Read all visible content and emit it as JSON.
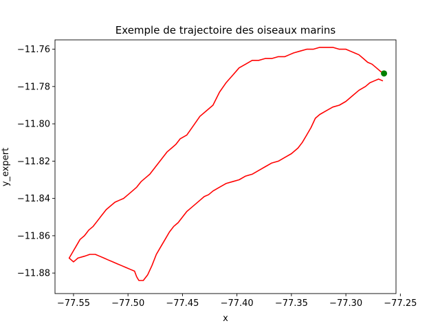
{
  "chart_data": {
    "type": "line",
    "title": "Exemple de trajectoire des oiseaux marins",
    "xlabel": "x",
    "ylabel": "y_expert",
    "xlim": [
      -77.567,
      -77.254
    ],
    "ylim": [
      -11.891,
      -11.755
    ],
    "grid": false,
    "xticks": [
      -77.55,
      -77.5,
      -77.45,
      -77.4,
      -77.35,
      -77.3,
      -77.25
    ],
    "xtick_labels": [
      "−77.55",
      "−77.50",
      "−77.45",
      "−77.40",
      "−77.35",
      "−77.30",
      "−77.25"
    ],
    "yticks": [
      -11.76,
      -11.78,
      -11.8,
      -11.82,
      -11.84,
      -11.86,
      -11.88
    ],
    "ytick_labels": [
      "−11.76",
      "−11.78",
      "−11.80",
      "−11.82",
      "−11.84",
      "−11.86",
      "−11.88"
    ],
    "line_color": "#ff0000",
    "marker_color": "#008000",
    "start_point": {
      "x": -77.265,
      "y": -11.773
    },
    "series": [
      {
        "x": [
          -77.265,
          -77.268,
          -77.272,
          -77.276,
          -77.28,
          -77.284,
          -77.288,
          -77.292,
          -77.296,
          -77.3,
          -77.306,
          -77.312,
          -77.318,
          -77.324,
          -77.33,
          -77.336,
          -77.342,
          -77.348,
          -77.352,
          -77.356,
          -77.362,
          -77.368,
          -77.374,
          -77.38,
          -77.386,
          -77.392,
          -77.398,
          -77.404,
          -77.41,
          -77.416,
          -77.422,
          -77.428,
          -77.434,
          -77.44,
          -77.446,
          -77.452,
          -77.456,
          -77.46,
          -77.464,
          -77.468,
          -77.472,
          -77.476,
          -77.48,
          -77.484,
          -77.488,
          -77.492,
          -77.496,
          -77.5,
          -77.504,
          -77.508,
          -77.512,
          -77.516,
          -77.52,
          -77.524,
          -77.528,
          -77.532,
          -77.536,
          -77.54,
          -77.544,
          -77.546,
          -77.548,
          -77.55,
          -77.552,
          -77.554,
          -77.552,
          -77.55,
          -77.548,
          -77.546,
          -77.54,
          -77.535,
          -77.53,
          -77.526,
          -77.522,
          -77.518,
          -77.514,
          -77.51,
          -77.506,
          -77.502,
          -77.498,
          -77.494,
          -77.492,
          -77.49,
          -77.486,
          -77.482,
          -77.478,
          -77.474,
          -77.47,
          -77.466,
          -77.462,
          -77.458,
          -77.454,
          -77.45,
          -77.446,
          -77.442,
          -77.438,
          -77.434,
          -77.43,
          -77.426,
          -77.422,
          -77.416,
          -77.41,
          -77.404,
          -77.398,
          -77.392,
          -77.386,
          -77.38,
          -77.374,
          -77.368,
          -77.362,
          -77.356,
          -77.35,
          -77.344,
          -77.34,
          -77.336,
          -77.332,
          -77.328,
          -77.324,
          -77.318,
          -77.312,
          -77.306,
          -77.3,
          -77.294,
          -77.288,
          -77.282,
          -77.278,
          -77.274,
          -77.27,
          -77.266
        ],
        "y": [
          -11.773,
          -11.772,
          -11.77,
          -11.768,
          -11.767,
          -11.765,
          -11.763,
          -11.762,
          -11.761,
          -11.76,
          -11.76,
          -11.759,
          -11.759,
          -11.759,
          -11.76,
          -11.76,
          -11.761,
          -11.762,
          -11.763,
          -11.764,
          -11.764,
          -11.765,
          -11.765,
          -11.766,
          -11.766,
          -11.768,
          -11.77,
          -11.774,
          -11.778,
          -11.783,
          -11.79,
          -11.793,
          -11.796,
          -11.801,
          -11.806,
          -11.808,
          -11.811,
          -11.813,
          -11.815,
          -11.818,
          -11.821,
          -11.824,
          -11.827,
          -11.829,
          -11.831,
          -11.834,
          -11.836,
          -11.838,
          -11.84,
          -11.841,
          -11.842,
          -11.844,
          -11.846,
          -11.849,
          -11.852,
          -11.855,
          -11.857,
          -11.86,
          -11.862,
          -11.864,
          -11.866,
          -11.868,
          -11.87,
          -11.872,
          -11.873,
          -11.874,
          -11.873,
          -11.872,
          -11.871,
          -11.87,
          -11.87,
          -11.871,
          -11.872,
          -11.873,
          -11.874,
          -11.875,
          -11.876,
          -11.877,
          -11.878,
          -11.879,
          -11.882,
          -11.884,
          -11.884,
          -11.881,
          -11.876,
          -11.87,
          -11.866,
          -11.862,
          -11.858,
          -11.855,
          -11.853,
          -11.85,
          -11.847,
          -11.845,
          -11.843,
          -11.841,
          -11.839,
          -11.838,
          -11.836,
          -11.834,
          -11.832,
          -11.831,
          -11.83,
          -11.828,
          -11.827,
          -11.825,
          -11.823,
          -11.821,
          -11.82,
          -11.818,
          -11.816,
          -11.813,
          -11.81,
          -11.806,
          -11.802,
          -11.797,
          -11.795,
          -11.793,
          -11.791,
          -11.79,
          -11.788,
          -11.785,
          -11.782,
          -11.78,
          -11.778,
          -11.777,
          -11.776,
          -11.777
        ]
      }
    ]
  }
}
